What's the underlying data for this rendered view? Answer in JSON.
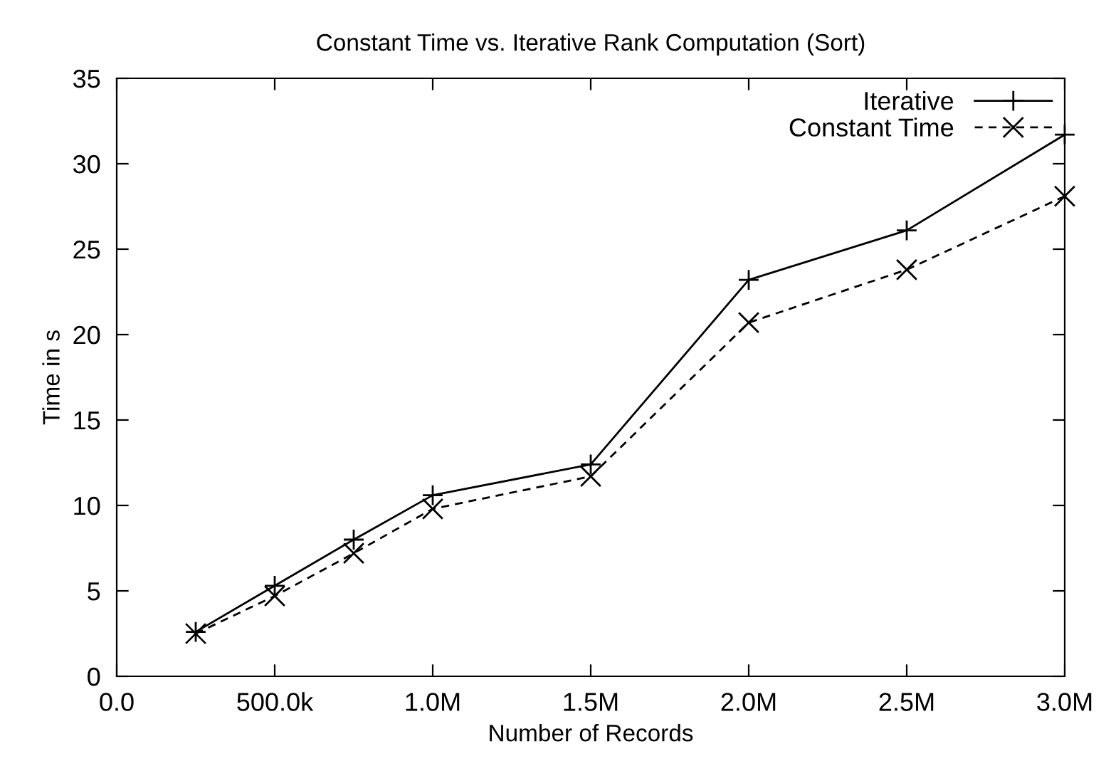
{
  "chart_data": {
    "type": "line",
    "title": "Constant Time vs. Iterative Rank Computation (Sort)",
    "xlabel": "Number of Records",
    "ylabel": "Time in s",
    "x": [
      250000,
      500000,
      750000,
      1000000,
      1500000,
      2000000,
      2500000,
      3000000
    ],
    "series": [
      {
        "name": "Iterative",
        "color": "#000000",
        "marker": "plus",
        "line_style": "solid",
        "values": [
          2.6,
          5.3,
          8.0,
          10.6,
          12.4,
          23.2,
          26.1,
          31.7
        ]
      },
      {
        "name": "Constant Time",
        "color": "#000000",
        "marker": "cross",
        "line_style": "dashed",
        "values": [
          2.5,
          4.7,
          7.2,
          9.8,
          11.7,
          20.7,
          23.8,
          28.1
        ]
      }
    ],
    "xlim": [
      0,
      3000000
    ],
    "ylim": [
      0,
      35
    ],
    "xticks": [
      {
        "value": 0,
        "label": "0.0"
      },
      {
        "value": 500000,
        "label": "500.0k"
      },
      {
        "value": 1000000,
        "label": "1.0M"
      },
      {
        "value": 1500000,
        "label": "1.5M"
      },
      {
        "value": 2000000,
        "label": "2.0M"
      },
      {
        "value": 2500000,
        "label": "2.5M"
      },
      {
        "value": 3000000,
        "label": "3.0M"
      }
    ],
    "yticks": [
      0,
      5,
      10,
      15,
      20,
      25,
      30,
      35
    ],
    "grid": false,
    "legend": "top right"
  }
}
